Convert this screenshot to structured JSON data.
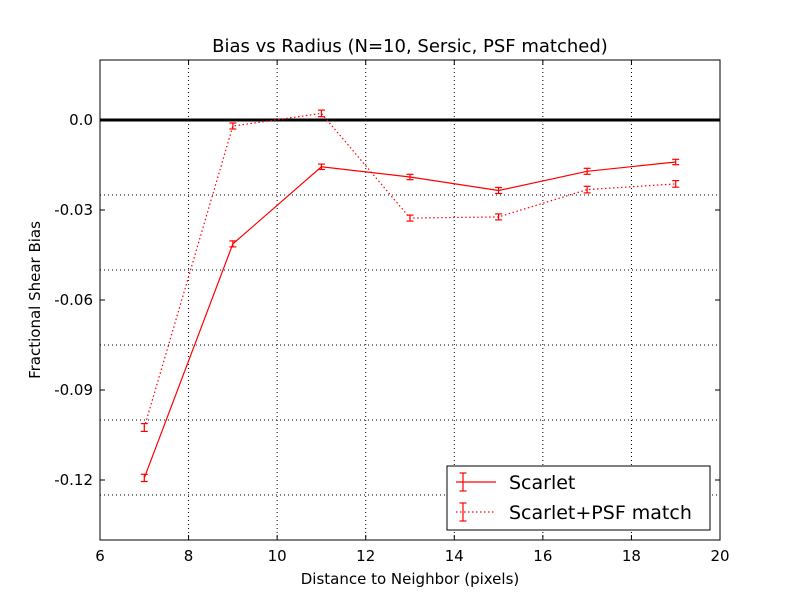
{
  "chart_data": {
    "type": "line",
    "title": "Bias vs Radius (N=10, Sersic, PSF matched)",
    "xlabel": "Distance to Neighbor (pixels)",
    "ylabel": "Fractional Shear Bias",
    "xlim": [
      6,
      20
    ],
    "ylim": [
      -0.14,
      0.02
    ],
    "xticks": [
      6,
      8,
      10,
      12,
      14,
      16,
      18,
      20
    ],
    "xtick_labels": [
      "6",
      "8",
      "10",
      "12",
      "14",
      "16",
      "18",
      "20"
    ],
    "yticks": [
      0.0,
      -0.03,
      -0.06,
      -0.09,
      -0.12
    ],
    "ytick_labels": [
      "0.0",
      "-0.03",
      "-0.06",
      "-0.09",
      "-0.12"
    ],
    "y_gridlines": [
      0.0,
      -0.025,
      -0.05,
      -0.075,
      -0.1,
      -0.125
    ],
    "x_gridlines": [
      8,
      10,
      12,
      14,
      16,
      18
    ],
    "grid": true,
    "reference_line": 0.0,
    "legend_position": "lower-right",
    "colors": {
      "series": "#ff0000",
      "reference": "#000000",
      "grid": "#000000"
    },
    "series": [
      {
        "name": "Scarlet",
        "style": "solid",
        "x": [
          7,
          9,
          11,
          13,
          15,
          17,
          19
        ],
        "y": [
          -0.1193,
          -0.0413,
          -0.0156,
          -0.019,
          -0.0235,
          -0.0171,
          -0.014
        ],
        "yerr": [
          0.0012,
          0.001,
          0.0009,
          0.0009,
          0.001,
          0.001,
          0.0009
        ]
      },
      {
        "name": "Scarlet+PSF match",
        "style": "dotted",
        "x": [
          7,
          9,
          11,
          13,
          15,
          17,
          19
        ],
        "y": [
          -0.1025,
          -0.002,
          0.0022,
          -0.0327,
          -0.0323,
          -0.0232,
          -0.0213
        ],
        "yerr": [
          0.0013,
          0.001,
          0.0011,
          0.001,
          0.001,
          0.0011,
          0.0011
        ]
      }
    ]
  }
}
